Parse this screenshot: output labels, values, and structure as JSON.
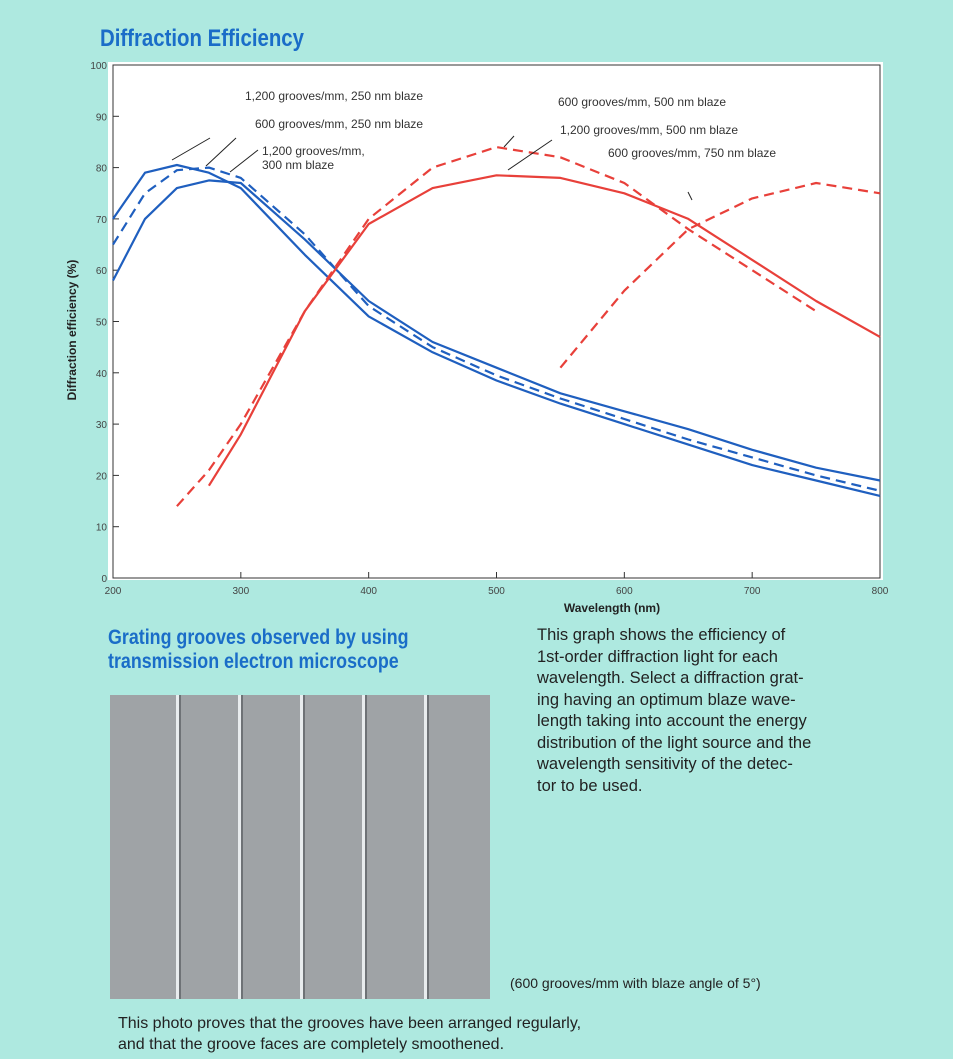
{
  "chart_data": {
    "type": "line",
    "title": "Diffraction Efficiency",
    "x_label": "Wavelength (nm)",
    "y_label": "Diffraction efficiency (%)",
    "x": [
      200,
      225,
      250,
      275,
      300,
      350,
      400,
      450,
      500,
      550,
      600,
      650,
      700,
      750,
      800
    ],
    "xlim": [
      200,
      800
    ],
    "xticks": [
      200,
      300,
      400,
      500,
      600,
      700,
      800
    ],
    "ylim": [
      0,
      100
    ],
    "yticks": [
      0,
      10,
      20,
      30,
      40,
      50,
      60,
      70,
      80,
      90,
      100
    ],
    "grid": false,
    "series": [
      {
        "name": "1,200 grooves/mm, 250 nm blaze",
        "color": "#1f5fbf",
        "dashed": false,
        "values": [
          70,
          79,
          80.5,
          79,
          76,
          63,
          51,
          44,
          38.5,
          34,
          30,
          26,
          22,
          19,
          16
        ]
      },
      {
        "name": "600 grooves/mm, 250 nm blaze",
        "color": "#1f5fbf",
        "dashed": true,
        "values": [
          65,
          75,
          79.5,
          80,
          78,
          67,
          53,
          45,
          39.5,
          35,
          31,
          27,
          23.5,
          20,
          17
        ]
      },
      {
        "name": "1,200 grooves/mm, 300 nm blaze",
        "color": "#1f5fbf",
        "dashed": false,
        "values": [
          58,
          70,
          76,
          77.5,
          77,
          66,
          54,
          46,
          41,
          36,
          32.5,
          29,
          25,
          21.5,
          19
        ]
      },
      {
        "name": "600 grooves/mm, 500 nm blaze",
        "color": "#e8403a",
        "dashed": true,
        "values": [
          null,
          null,
          14,
          21,
          30,
          52,
          70,
          80,
          84,
          82,
          77,
          68,
          60,
          52,
          null
        ]
      },
      {
        "name": "1,200 grooves/mm, 500 nm blaze",
        "color": "#e8403a",
        "dashed": false,
        "values": [
          null,
          null,
          null,
          18,
          28,
          52,
          69,
          76,
          78.5,
          78,
          75,
          70,
          62,
          54,
          47
        ]
      },
      {
        "name": "600 grooves/mm, 750 nm blaze",
        "color": "#e8403a",
        "dashed": true,
        "values": [
          null,
          null,
          null,
          null,
          null,
          null,
          null,
          null,
          null,
          41,
          56,
          68,
          74,
          77,
          75
        ]
      }
    ]
  },
  "photo_heading": [
    "Grating grooves observed by using",
    "transmission electron microscope"
  ],
  "description": [
    "This graph shows the efficiency of",
    "1st-order diffraction light for each",
    "wavelength.  Select a diffraction grat-",
    "ing having an optimum blaze wave-",
    "length taking into account the energy",
    "distribution of the light source and the",
    "wavelength sensitivity of the detec-",
    "tor to be used."
  ],
  "photo_caption": "(600 grooves/mm with blaze angle of 5°)",
  "conclusion": [
    "This photo proves that the grooves have been arranged regularly,",
    "and that the groove faces are completely smoothened."
  ]
}
